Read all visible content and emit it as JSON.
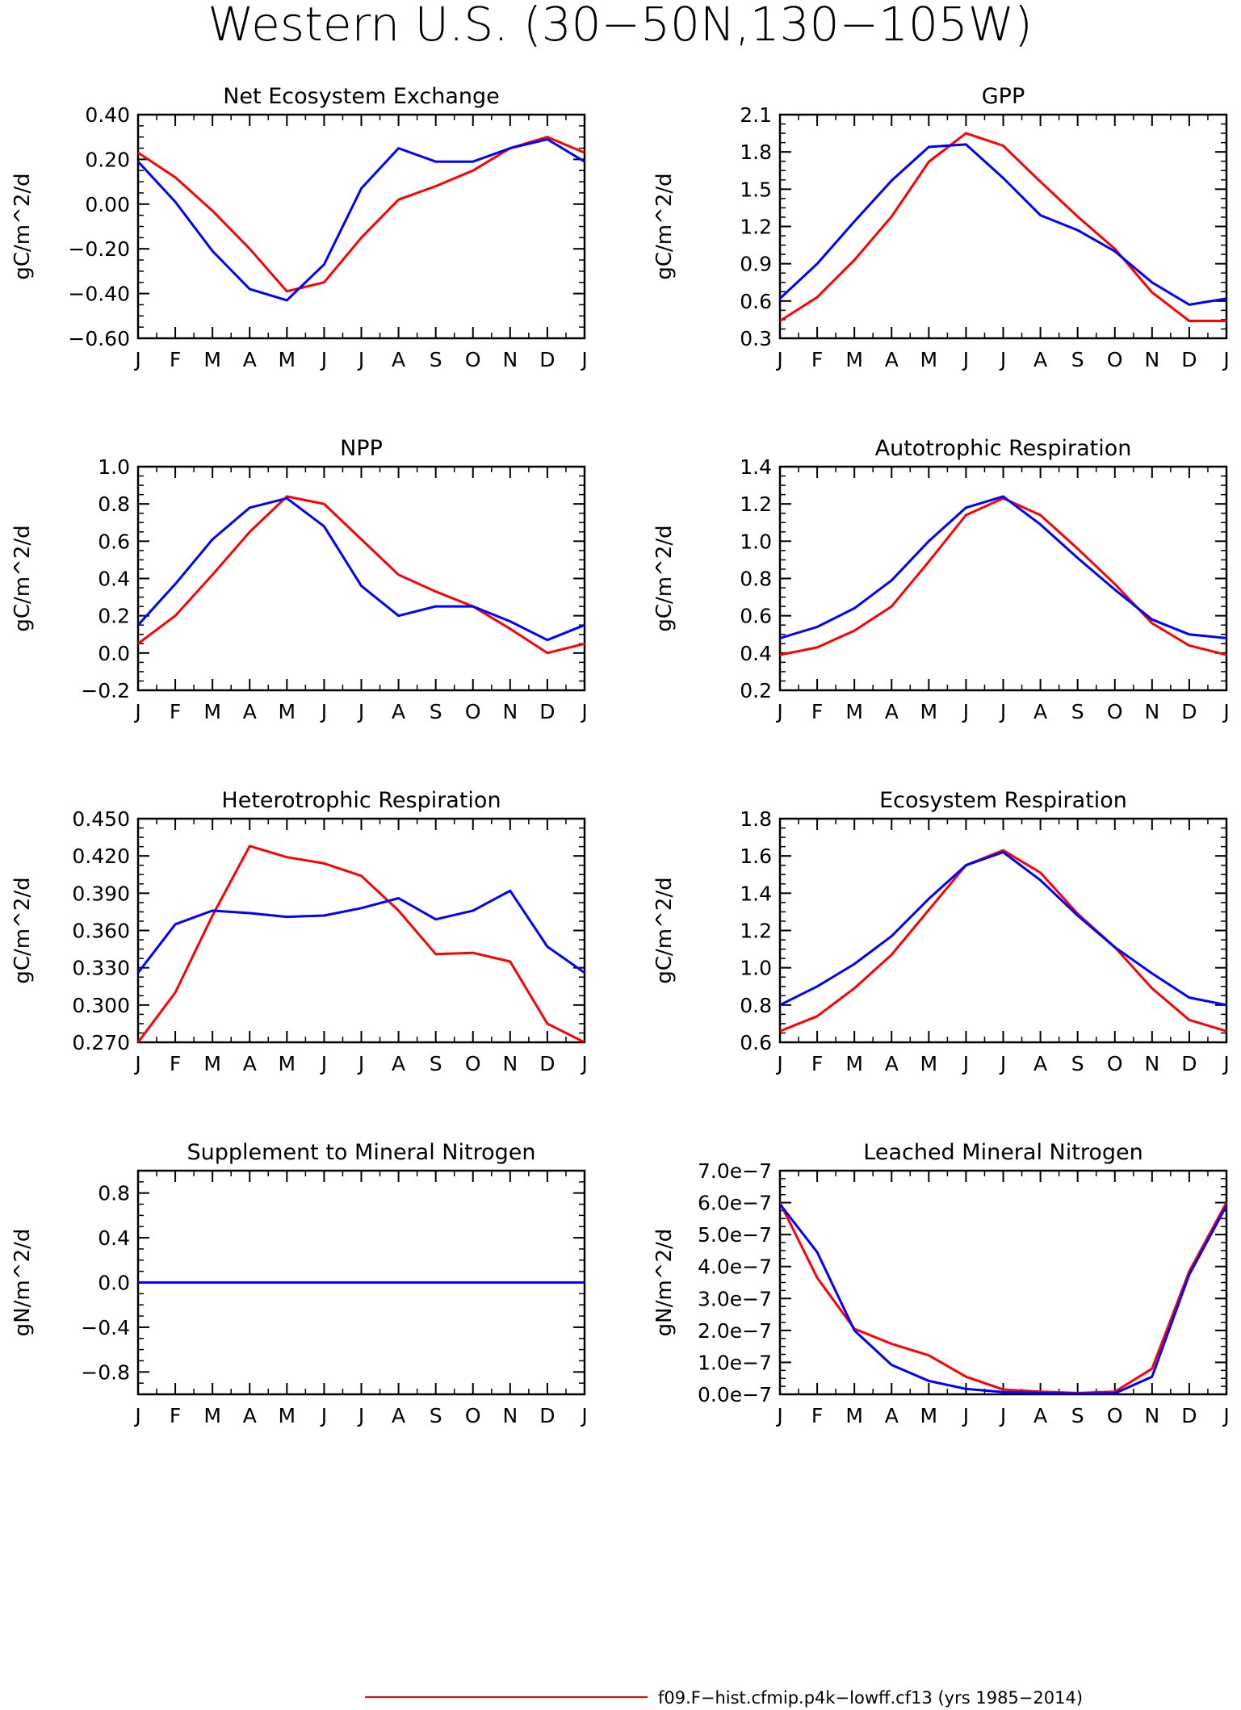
{
  "figure": {
    "title": "Western U.S. (30−50N,130−105W)",
    "legend": {
      "entries": [
        {
          "label": "f09.F−hist.cfmip.p4k−lowff.cf13 (yrs 1985−2014)",
          "color": "#ff0000"
        }
      ],
      "placement": "bottom-right"
    }
  },
  "months": [
    "J",
    "F",
    "M",
    "A",
    "M",
    "J",
    "J",
    "A",
    "S",
    "O",
    "N",
    "D",
    "J"
  ],
  "colors": {
    "red": "#ff0000",
    "blue": "#0000ff"
  },
  "chart_data": [
    {
      "type": "line",
      "title": "Net Ecosystem Exchange",
      "ylabel": "gC/m^2/d",
      "ylim": [
        -0.6,
        0.4
      ],
      "yticks": [
        "0.40",
        "0.20",
        "0.00",
        "−0.20",
        "−0.40",
        "−0.60"
      ],
      "ytick_values": [
        0.4,
        0.2,
        0.0,
        -0.2,
        -0.4,
        -0.6
      ],
      "x": [
        "J",
        "F",
        "M",
        "A",
        "M",
        "J",
        "J",
        "A",
        "S",
        "O",
        "N",
        "D",
        "J"
      ],
      "series": [
        {
          "color": "#ff0000",
          "values": [
            0.23,
            0.12,
            -0.03,
            -0.2,
            -0.39,
            -0.35,
            -0.15,
            0.02,
            0.08,
            0.15,
            0.25,
            0.3,
            0.23
          ]
        },
        {
          "color": "#0000ff",
          "values": [
            0.19,
            0.01,
            -0.21,
            -0.38,
            -0.43,
            -0.27,
            0.07,
            0.25,
            0.19,
            0.19,
            0.25,
            0.29,
            0.19
          ]
        }
      ]
    },
    {
      "type": "line",
      "title": "GPP",
      "ylabel": "gC/m^2/d",
      "ylim": [
        0.3,
        2.1
      ],
      "yticks": [
        "2.1",
        "1.8",
        "1.5",
        "1.2",
        "0.9",
        "0.6",
        "0.3"
      ],
      "ytick_values": [
        2.1,
        1.8,
        1.5,
        1.2,
        0.9,
        0.6,
        0.3
      ],
      "x": [
        "J",
        "F",
        "M",
        "A",
        "M",
        "J",
        "J",
        "A",
        "S",
        "O",
        "N",
        "D",
        "J"
      ],
      "series": [
        {
          "color": "#ff0000",
          "values": [
            0.44,
            0.63,
            0.93,
            1.28,
            1.72,
            1.95,
            1.85,
            1.56,
            1.28,
            1.02,
            0.67,
            0.44,
            0.44
          ]
        },
        {
          "color": "#0000ff",
          "values": [
            0.62,
            0.9,
            1.24,
            1.57,
            1.84,
            1.86,
            1.59,
            1.29,
            1.17,
            1.0,
            0.75,
            0.57,
            0.62
          ]
        }
      ]
    },
    {
      "type": "line",
      "title": "NPP",
      "ylabel": "gC/m^2/d",
      "ylim": [
        -0.2,
        1.0
      ],
      "yticks": [
        "1.0",
        "0.8",
        "0.6",
        "0.4",
        "0.2",
        "0.0",
        "−0.2"
      ],
      "ytick_values": [
        1.0,
        0.8,
        0.6,
        0.4,
        0.2,
        0.0,
        -0.2
      ],
      "x": [
        "J",
        "F",
        "M",
        "A",
        "M",
        "J",
        "J",
        "A",
        "S",
        "O",
        "N",
        "D",
        "J"
      ],
      "series": [
        {
          "color": "#ff0000",
          "values": [
            0.05,
            0.2,
            0.42,
            0.65,
            0.84,
            0.8,
            0.61,
            0.42,
            0.33,
            0.25,
            0.13,
            0.0,
            0.05
          ]
        },
        {
          "color": "#0000ff",
          "values": [
            0.15,
            0.37,
            0.61,
            0.78,
            0.83,
            0.68,
            0.36,
            0.2,
            0.25,
            0.25,
            0.17,
            0.07,
            0.15
          ]
        }
      ]
    },
    {
      "type": "line",
      "title": "Autotrophic Respiration",
      "ylabel": "gC/m^2/d",
      "ylim": [
        0.2,
        1.4
      ],
      "yticks": [
        "1.4",
        "1.2",
        "1.0",
        "0.8",
        "0.6",
        "0.4",
        "0.2"
      ],
      "ytick_values": [
        1.4,
        1.2,
        1.0,
        0.8,
        0.6,
        0.4,
        0.2
      ],
      "x": [
        "J",
        "F",
        "M",
        "A",
        "M",
        "J",
        "J",
        "A",
        "S",
        "O",
        "N",
        "D",
        "J"
      ],
      "series": [
        {
          "color": "#ff0000",
          "values": [
            0.39,
            0.43,
            0.52,
            0.65,
            0.89,
            1.14,
            1.23,
            1.14,
            0.96,
            0.77,
            0.56,
            0.44,
            0.39
          ]
        },
        {
          "color": "#0000ff",
          "values": [
            0.48,
            0.54,
            0.64,
            0.79,
            1.0,
            1.18,
            1.24,
            1.09,
            0.91,
            0.74,
            0.58,
            0.5,
            0.48
          ]
        }
      ]
    },
    {
      "type": "line",
      "title": "Heterotrophic Respiration",
      "ylabel": "gC/m^2/d",
      "ylim": [
        0.27,
        0.45
      ],
      "yticks": [
        "0.450",
        "0.420",
        "0.390",
        "0.360",
        "0.330",
        "0.300",
        "0.270"
      ],
      "ytick_values": [
        0.45,
        0.42,
        0.39,
        0.36,
        0.33,
        0.3,
        0.27
      ],
      "x": [
        "J",
        "F",
        "M",
        "A",
        "M",
        "J",
        "J",
        "A",
        "S",
        "O",
        "N",
        "D",
        "J"
      ],
      "series": [
        {
          "color": "#ff0000",
          "values": [
            0.27,
            0.31,
            0.372,
            0.428,
            0.419,
            0.414,
            0.404,
            0.376,
            0.341,
            0.342,
            0.335,
            0.285,
            0.27
          ]
        },
        {
          "color": "#0000ff",
          "values": [
            0.326,
            0.365,
            0.376,
            0.374,
            0.371,
            0.372,
            0.378,
            0.386,
            0.369,
            0.376,
            0.392,
            0.347,
            0.326
          ]
        }
      ]
    },
    {
      "type": "line",
      "title": "Ecosystem Respiration",
      "ylabel": "gC/m^2/d",
      "ylim": [
        0.6,
        1.8
      ],
      "yticks": [
        "1.8",
        "1.6",
        "1.4",
        "1.2",
        "1.0",
        "0.8",
        "0.6"
      ],
      "ytick_values": [
        1.8,
        1.6,
        1.4,
        1.2,
        1.0,
        0.8,
        0.6
      ],
      "x": [
        "J",
        "F",
        "M",
        "A",
        "M",
        "J",
        "J",
        "A",
        "S",
        "O",
        "N",
        "D",
        "J"
      ],
      "series": [
        {
          "color": "#ff0000",
          "values": [
            0.66,
            0.74,
            0.89,
            1.07,
            1.31,
            1.55,
            1.63,
            1.51,
            1.29,
            1.11,
            0.89,
            0.72,
            0.66
          ]
        },
        {
          "color": "#0000ff",
          "values": [
            0.8,
            0.9,
            1.02,
            1.17,
            1.37,
            1.55,
            1.62,
            1.47,
            1.28,
            1.11,
            0.97,
            0.84,
            0.8
          ]
        }
      ]
    },
    {
      "type": "line",
      "title": "Supplement to Mineral Nitrogen",
      "ylabel": "gN/m^2/d",
      "ylim": [
        -1.0,
        1.0
      ],
      "yticks": [
        "0.8",
        "0.4",
        "0.0",
        "−0.4",
        "−0.8"
      ],
      "ytick_values": [
        0.8,
        0.4,
        0.0,
        -0.4,
        -0.8
      ],
      "x": [
        "J",
        "F",
        "M",
        "A",
        "M",
        "J",
        "J",
        "A",
        "S",
        "O",
        "N",
        "D",
        "J"
      ],
      "series": [
        {
          "color": "#ff0000",
          "values": [
            0,
            0,
            0,
            0,
            0,
            0,
            0,
            0,
            0,
            0,
            0,
            0,
            0
          ]
        },
        {
          "color": "#0000ff",
          "values": [
            0,
            0,
            0,
            0,
            0,
            0,
            0,
            0,
            0,
            0,
            0,
            0,
            0
          ]
        }
      ]
    },
    {
      "type": "line",
      "title": "Leached Mineral Nitrogen",
      "ylabel": "gN/m^2/d",
      "ylim": [
        0,
        7e-07
      ],
      "yticks": [
        "7.0e−7",
        "6.0e−7",
        "5.0e−7",
        "4.0e−7",
        "3.0e−7",
        "2.0e−7",
        "1.0e−7",
        "0.0e−7"
      ],
      "ytick_values": [
        7e-07,
        6e-07,
        5e-07,
        4e-07,
        3e-07,
        2e-07,
        1e-07,
        0
      ],
      "x": [
        "J",
        "F",
        "M",
        "A",
        "M",
        "J",
        "J",
        "A",
        "S",
        "O",
        "N",
        "D",
        "J"
      ],
      "series": [
        {
          "color": "#ff0000",
          "values": [
            6e-07,
            3.65e-07,
            2.05e-07,
            1.58e-07,
            1.22e-07,
            5.5e-08,
            1.5e-08,
            8e-09,
            4e-09,
            8e-09,
            8e-08,
            3.85e-07,
            6e-07
          ]
        },
        {
          "color": "#0000ff",
          "values": [
            5.95e-07,
            4.45e-07,
            2e-07,
            9.2e-08,
            4.2e-08,
            1.7e-08,
            7e-09,
            4e-09,
            2e-09,
            3e-09,
            5.5e-08,
            3.75e-07,
            5.9e-07
          ]
        }
      ]
    }
  ]
}
